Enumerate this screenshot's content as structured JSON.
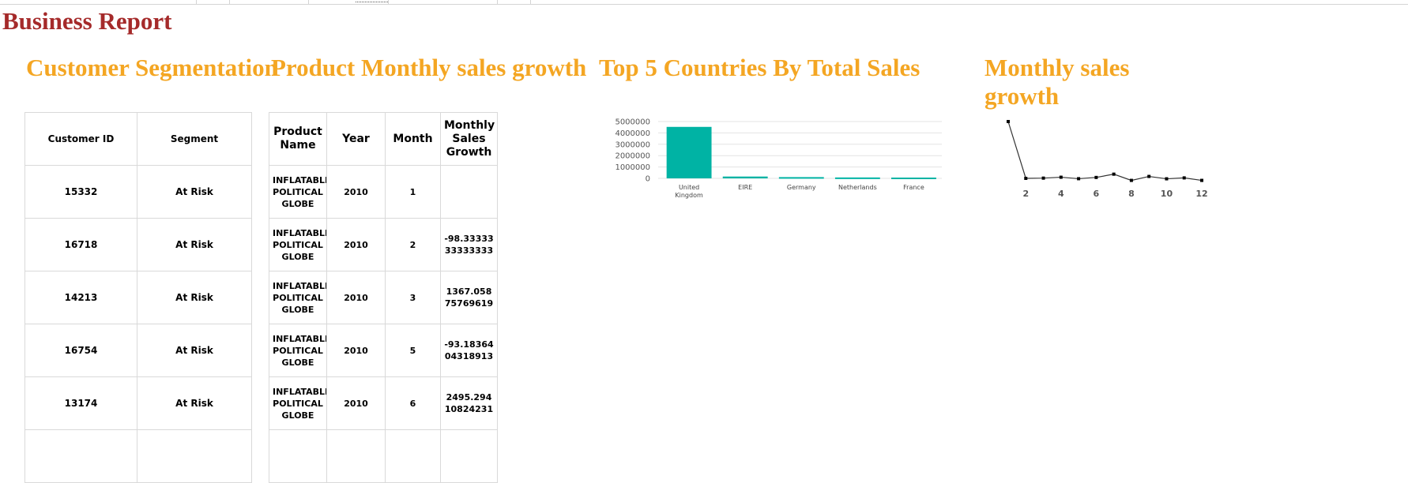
{
  "report": {
    "title": "Business Report"
  },
  "customer_segmentation": {
    "title": "Customer Segmentation",
    "columns": [
      "Customer ID",
      "Segment"
    ],
    "rows": [
      {
        "customer_id": "15332",
        "segment": "At Risk"
      },
      {
        "customer_id": "16718",
        "segment": "At Risk"
      },
      {
        "customer_id": "14213",
        "segment": "At Risk"
      },
      {
        "customer_id": "16754",
        "segment": "At Risk"
      },
      {
        "customer_id": "13174",
        "segment": "At Risk"
      }
    ]
  },
  "product_growth": {
    "title": "Product Monthly sales growth",
    "columns": [
      "Product Name",
      "Year",
      "Month",
      "Monthly Sales Growth"
    ],
    "rows": [
      {
        "product": "INFLATABLE POLITICAL GLOBE",
        "year": "2010",
        "month": "1",
        "growth": ""
      },
      {
        "product": "INFLATABLE POLITICAL GLOBE",
        "year": "2010",
        "month": "2",
        "growth": "-98.3333333333333"
      },
      {
        "product": "INFLATABLE POLITICAL GLOBE",
        "year": "2010",
        "month": "3",
        "growth": "1367.05875769619"
      },
      {
        "product": "INFLATABLE POLITICAL GLOBE",
        "year": "2010",
        "month": "5",
        "growth": "-93.1836404318913"
      },
      {
        "product": "INFLATABLE POLITICAL GLOBE",
        "year": "2010",
        "month": "6",
        "growth": "2495.29410824231"
      }
    ]
  },
  "top_countries": {
    "title": "Top 5 Countries By Total Sales"
  },
  "monthly_growth": {
    "title": "Monthly sales growth"
  },
  "chart_data": [
    {
      "type": "bar",
      "title": "Top 5 Countries By Total Sales",
      "categories": [
        "United Kingdom",
        "EIRE",
        "Germany",
        "Netherlands",
        "France"
      ],
      "values": [
        4530000,
        160000,
        110000,
        80000,
        70000
      ],
      "ylim": [
        0,
        5000000
      ],
      "yticks": [
        0,
        1000000,
        2000000,
        3000000,
        4000000,
        5000000
      ],
      "ytick_labels": [
        "0",
        "1000000",
        "2000000",
        "3000000",
        "4000000",
        "5000000"
      ],
      "grid": true,
      "color": "#00b3a4"
    },
    {
      "type": "line",
      "title": "Monthly sales growth",
      "x": [
        1,
        2,
        3,
        4,
        5,
        6,
        7,
        8,
        9,
        10,
        11,
        12
      ],
      "y": [
        5000,
        -20,
        0,
        80,
        -50,
        60,
        350,
        -200,
        150,
        -60,
        20,
        -200
      ],
      "xticks": [
        2,
        4,
        6,
        8,
        10,
        12
      ],
      "xlim": [
        1,
        12
      ],
      "ylim": [
        -300,
        5000
      ],
      "grid": false,
      "color": "#333333"
    }
  ]
}
